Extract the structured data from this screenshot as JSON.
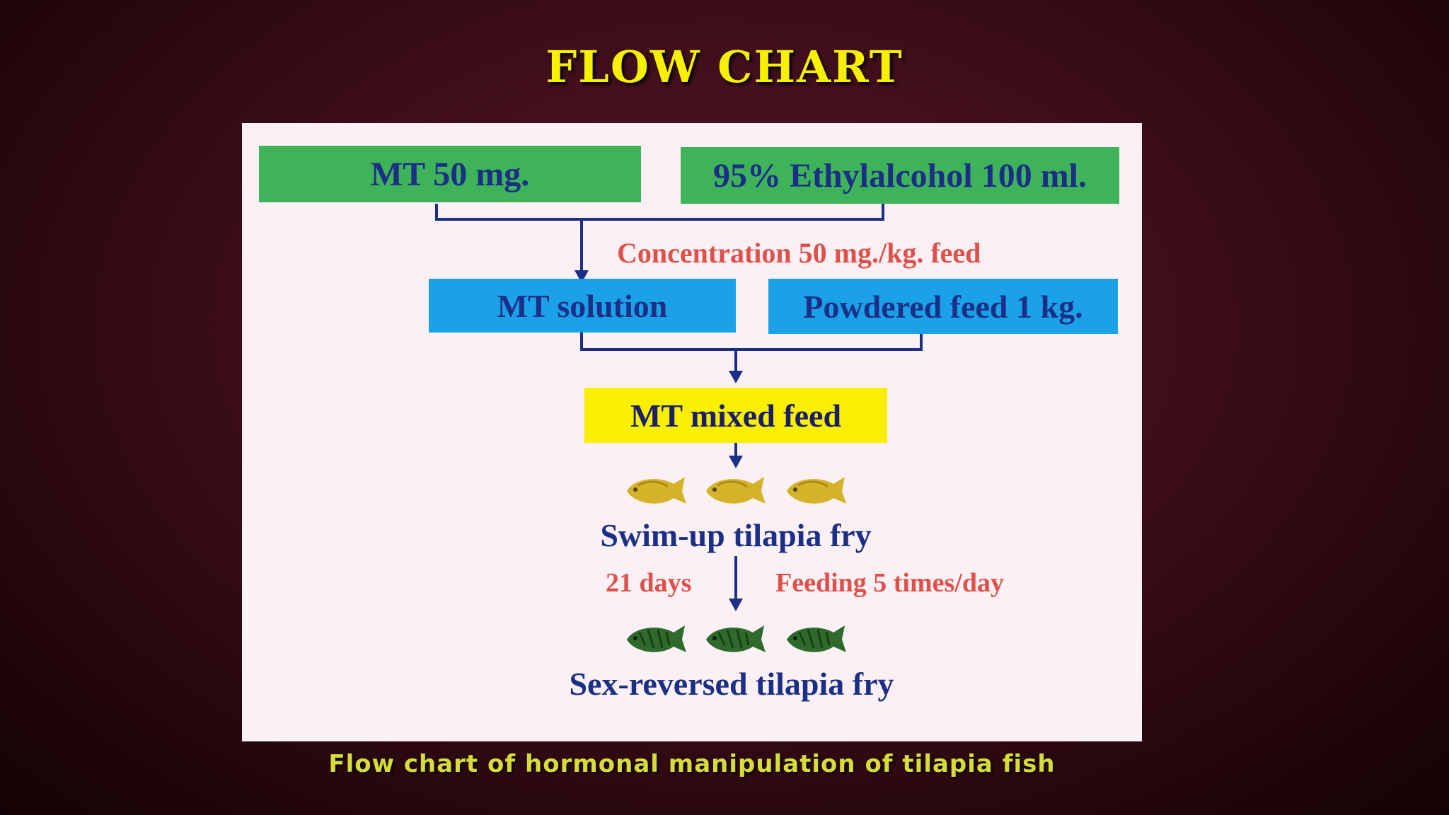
{
  "title": "FLOW CHART",
  "caption": "Flow chart of hormonal manipulation of tilapia fish",
  "colors": {
    "title": "#f7f000",
    "ingredient_box": "#3fb35a",
    "solution_box": "#1ba1e8",
    "mixed_box": "#f8f000",
    "box_text": "#1b2f86",
    "note_text": "#e0504a",
    "arrow": "#1b2f86",
    "fry_fish": "#d4b22a",
    "reversed_fish": "#2f6a2c"
  },
  "flow": {
    "inputs": {
      "mt": "MT 50 mg.",
      "alcohol": "95% Ethylalcohol 100 ml."
    },
    "concentration_note": "Concentration 50 mg./kg. feed",
    "mixing": {
      "solution": "MT solution",
      "feed": "Powdered feed 1 kg."
    },
    "mixed_feed": "MT mixed feed",
    "swim_up": "Swim-up tilapia fry",
    "duration_note": "21 days",
    "feeding_note": "Feeding 5 times/day",
    "result": "Sex-reversed tilapia fry"
  },
  "icons": {
    "fry": "tilapia-fry-icon",
    "reversed": "sex-reversed-fry-icon",
    "fry_count": 3,
    "reversed_count": 3
  }
}
